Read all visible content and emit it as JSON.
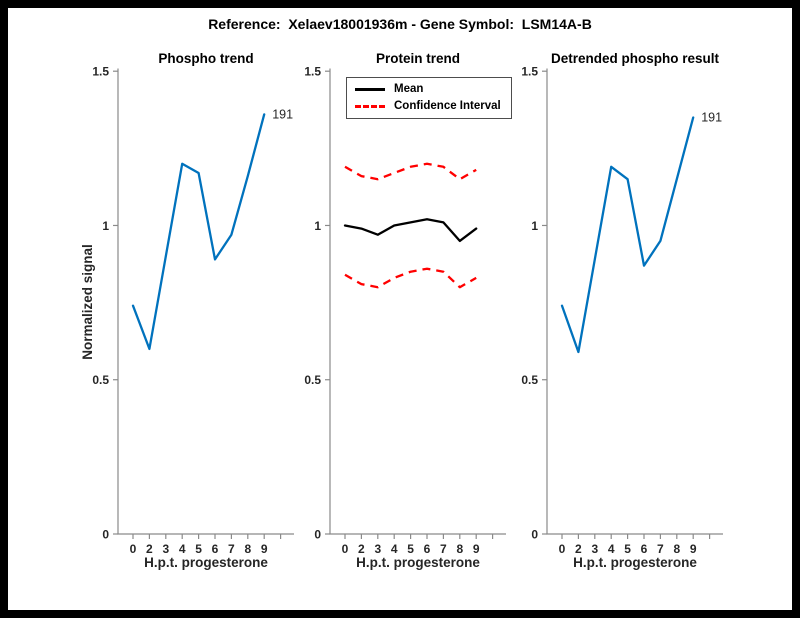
{
  "figure": {
    "title": "Reference:  Xelaev18001936m - Gene Symbol:  LSM14A-B",
    "frame_color": "#000000",
    "canvas_color": "#ffffff"
  },
  "colors": {
    "blue": "#0072BD",
    "red": "#FF0000",
    "black": "#000000",
    "tick_text": "#262626",
    "spine": "#8a8a8a"
  },
  "chart_data": [
    {
      "type": "line",
      "title": "Phospho trend",
      "xlabel": "H.p.t. progesterone",
      "ylabel": "Normalized signal",
      "xticklabels": [
        "0",
        "2",
        "3",
        "4",
        "5",
        "6",
        "7",
        "8",
        "9"
      ],
      "yticks": [
        0,
        0.5,
        1,
        1.5
      ],
      "yticklabels": [
        "0",
        "0.5",
        "1",
        "1.5"
      ],
      "ylim": [
        0,
        1.5
      ],
      "grid": false,
      "end_label": "191",
      "series": [
        {
          "name": "phospho",
          "color": "#0072BD",
          "style": "solid",
          "values": [
            0.74,
            0.6,
            0.9,
            1.2,
            1.17,
            0.89,
            0.97,
            1.16,
            1.36
          ]
        }
      ]
    },
    {
      "type": "line",
      "title": "Protein trend",
      "xlabel": "H.p.t. progesterone",
      "xticklabels": [
        "0",
        "2",
        "3",
        "4",
        "5",
        "6",
        "7",
        "8",
        "9"
      ],
      "yticks": [
        0,
        0.5,
        1,
        1.5
      ],
      "yticklabels": [
        "0",
        "0.5",
        "1",
        "1.5"
      ],
      "ylim": [
        0,
        1.5
      ],
      "grid": false,
      "legend": {
        "position": "northwest",
        "items": [
          {
            "label": "Mean",
            "style": "solid",
            "color": "#000000"
          },
          {
            "label": "Confidence Interval",
            "style": "dashed",
            "color": "#FF0000"
          }
        ]
      },
      "series": [
        {
          "name": "Mean",
          "color": "#000000",
          "style": "solid",
          "values": [
            1.0,
            0.99,
            0.97,
            1.0,
            1.01,
            1.02,
            1.01,
            0.95,
            0.99
          ]
        },
        {
          "name": "CI upper",
          "color": "#FF0000",
          "style": "dashed",
          "values": [
            1.19,
            1.16,
            1.15,
            1.17,
            1.19,
            1.2,
            1.19,
            1.15,
            1.18
          ]
        },
        {
          "name": "CI lower",
          "color": "#FF0000",
          "style": "dashed",
          "values": [
            0.84,
            0.81,
            0.8,
            0.83,
            0.85,
            0.86,
            0.85,
            0.8,
            0.83
          ]
        }
      ]
    },
    {
      "type": "line",
      "title": "Detrended phospho result",
      "xlabel": "H.p.t. progesterone",
      "xticklabels": [
        "0",
        "2",
        "3",
        "4",
        "5",
        "6",
        "7",
        "8",
        "9"
      ],
      "yticks": [
        0,
        0.5,
        1,
        1.5
      ],
      "yticklabels": [
        "0",
        "0.5",
        "1",
        "1.5"
      ],
      "ylim": [
        0,
        1.5
      ],
      "grid": false,
      "end_label": "191",
      "series": [
        {
          "name": "detrended phospho",
          "color": "#0072BD",
          "style": "solid",
          "values": [
            0.74,
            0.59,
            0.89,
            1.19,
            1.15,
            0.87,
            0.95,
            1.15,
            1.35
          ]
        }
      ]
    }
  ]
}
